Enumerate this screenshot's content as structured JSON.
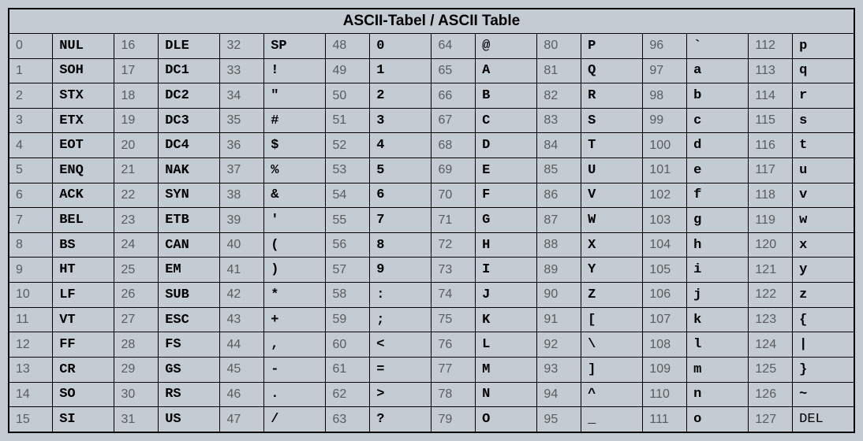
{
  "table": {
    "title": "ASCII-Tabel / ASCII Table",
    "title_fontsize": 19,
    "title_font_family": "Arial, Helvetica, sans-serif",
    "title_font_weight": "bold",
    "background_color": "#c3cbd3",
    "border_color": "#000000",
    "code_text_color": "#5b5b5b",
    "char_text_color": "#000000",
    "code_font_family": "Verdana, Geneva, sans-serif",
    "char_font_family": "Courier New, Courier, monospace",
    "code_fontsize": 16,
    "char_fontsize": 17,
    "columns_per_group": 2,
    "groups": 8,
    "rows_count": 16,
    "columns": [
      [
        {
          "code": "0",
          "char": "NUL"
        },
        {
          "code": "1",
          "char": "SOH"
        },
        {
          "code": "2",
          "char": "STX"
        },
        {
          "code": "3",
          "char": "ETX"
        },
        {
          "code": "4",
          "char": "EOT"
        },
        {
          "code": "5",
          "char": "ENQ"
        },
        {
          "code": "6",
          "char": "ACK"
        },
        {
          "code": "7",
          "char": "BEL"
        },
        {
          "code": "8",
          "char": "BS"
        },
        {
          "code": "9",
          "char": "HT"
        },
        {
          "code": "10",
          "char": "LF"
        },
        {
          "code": "11",
          "char": "VT"
        },
        {
          "code": "12",
          "char": "FF"
        },
        {
          "code": "13",
          "char": "CR"
        },
        {
          "code": "14",
          "char": "SO"
        },
        {
          "code": "15",
          "char": "SI"
        }
      ],
      [
        {
          "code": "16",
          "char": "DLE"
        },
        {
          "code": "17",
          "char": "DC1"
        },
        {
          "code": "18",
          "char": "DC2"
        },
        {
          "code": "19",
          "char": "DC3"
        },
        {
          "code": "20",
          "char": "DC4"
        },
        {
          "code": "21",
          "char": "NAK"
        },
        {
          "code": "22",
          "char": "SYN"
        },
        {
          "code": "23",
          "char": "ETB"
        },
        {
          "code": "24",
          "char": "CAN"
        },
        {
          "code": "25",
          "char": "EM"
        },
        {
          "code": "26",
          "char": "SUB"
        },
        {
          "code": "27",
          "char": "ESC"
        },
        {
          "code": "28",
          "char": "FS"
        },
        {
          "code": "29",
          "char": "GS"
        },
        {
          "code": "30",
          "char": "RS"
        },
        {
          "code": "31",
          "char": "US"
        }
      ],
      [
        {
          "code": "32",
          "char": "SP"
        },
        {
          "code": "33",
          "char": "!"
        },
        {
          "code": "34",
          "char": "\""
        },
        {
          "code": "35",
          "char": "#"
        },
        {
          "code": "36",
          "char": "$"
        },
        {
          "code": "37",
          "char": "%"
        },
        {
          "code": "38",
          "char": "&"
        },
        {
          "code": "39",
          "char": "'"
        },
        {
          "code": "40",
          "char": "("
        },
        {
          "code": "41",
          "char": ")"
        },
        {
          "code": "42",
          "char": "*"
        },
        {
          "code": "43",
          "char": "+"
        },
        {
          "code": "44",
          "char": ","
        },
        {
          "code": "45",
          "char": "-"
        },
        {
          "code": "46",
          "char": "."
        },
        {
          "code": "47",
          "char": "/"
        }
      ],
      [
        {
          "code": "48",
          "char": "0"
        },
        {
          "code": "49",
          "char": "1"
        },
        {
          "code": "50",
          "char": "2"
        },
        {
          "code": "51",
          "char": "3"
        },
        {
          "code": "52",
          "char": "4"
        },
        {
          "code": "53",
          "char": "5"
        },
        {
          "code": "54",
          "char": "6"
        },
        {
          "code": "55",
          "char": "7"
        },
        {
          "code": "56",
          "char": "8"
        },
        {
          "code": "57",
          "char": "9"
        },
        {
          "code": "58",
          "char": ":"
        },
        {
          "code": "59",
          "char": ";"
        },
        {
          "code": "60",
          "char": "<"
        },
        {
          "code": "61",
          "char": "="
        },
        {
          "code": "62",
          "char": ">"
        },
        {
          "code": "63",
          "char": "?"
        }
      ],
      [
        {
          "code": "64",
          "char": "@"
        },
        {
          "code": "65",
          "char": "A"
        },
        {
          "code": "66",
          "char": "B"
        },
        {
          "code": "67",
          "char": "C"
        },
        {
          "code": "68",
          "char": "D"
        },
        {
          "code": "69",
          "char": "E"
        },
        {
          "code": "70",
          "char": "F"
        },
        {
          "code": "71",
          "char": "G"
        },
        {
          "code": "72",
          "char": "H"
        },
        {
          "code": "73",
          "char": "I"
        },
        {
          "code": "74",
          "char": "J"
        },
        {
          "code": "75",
          "char": "K"
        },
        {
          "code": "76",
          "char": "L"
        },
        {
          "code": "77",
          "char": "M"
        },
        {
          "code": "78",
          "char": "N"
        },
        {
          "code": "79",
          "char": "O"
        }
      ],
      [
        {
          "code": "80",
          "char": "P"
        },
        {
          "code": "81",
          "char": "Q"
        },
        {
          "code": "82",
          "char": "R"
        },
        {
          "code": "83",
          "char": "S"
        },
        {
          "code": "84",
          "char": "T"
        },
        {
          "code": "85",
          "char": "U"
        },
        {
          "code": "86",
          "char": "V"
        },
        {
          "code": "87",
          "char": "W"
        },
        {
          "code": "88",
          "char": "X"
        },
        {
          "code": "89",
          "char": "Y"
        },
        {
          "code": "90",
          "char": "Z"
        },
        {
          "code": "91",
          "char": "["
        },
        {
          "code": "92",
          "char": "\\"
        },
        {
          "code": "93",
          "char": "]"
        },
        {
          "code": "94",
          "char": "^"
        },
        {
          "code": "95",
          "char": "_"
        }
      ],
      [
        {
          "code": "96",
          "char": "`"
        },
        {
          "code": "97",
          "char": "a"
        },
        {
          "code": "98",
          "char": "b"
        },
        {
          "code": "99",
          "char": "c"
        },
        {
          "code": "100",
          "char": "d"
        },
        {
          "code": "101",
          "char": "e"
        },
        {
          "code": "102",
          "char": "f"
        },
        {
          "code": "103",
          "char": "g"
        },
        {
          "code": "104",
          "char": "h"
        },
        {
          "code": "105",
          "char": "i"
        },
        {
          "code": "106",
          "char": "j"
        },
        {
          "code": "107",
          "char": "k"
        },
        {
          "code": "108",
          "char": "l"
        },
        {
          "code": "109",
          "char": "m"
        },
        {
          "code": "110",
          "char": "n"
        },
        {
          "code": "111",
          "char": "o"
        }
      ],
      [
        {
          "code": "112",
          "char": "p"
        },
        {
          "code": "113",
          "char": "q"
        },
        {
          "code": "114",
          "char": "r"
        },
        {
          "code": "115",
          "char": "s"
        },
        {
          "code": "116",
          "char": "t"
        },
        {
          "code": "117",
          "char": "u"
        },
        {
          "code": "118",
          "char": "v"
        },
        {
          "code": "119",
          "char": "w"
        },
        {
          "code": "120",
          "char": "x"
        },
        {
          "code": "121",
          "char": "y"
        },
        {
          "code": "122",
          "char": "z"
        },
        {
          "code": "123",
          "char": "{"
        },
        {
          "code": "124",
          "char": "|"
        },
        {
          "code": "125",
          "char": "}"
        },
        {
          "code": "126",
          "char": "~"
        },
        {
          "code": "127",
          "char": "DEL",
          "thin": true
        }
      ]
    ]
  }
}
